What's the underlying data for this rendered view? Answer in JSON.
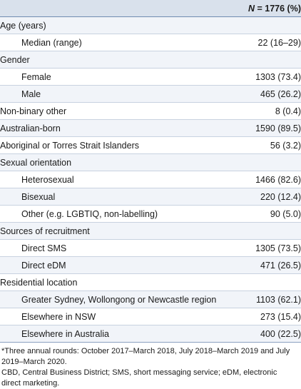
{
  "table": {
    "header": {
      "n_label": "N",
      "n_value": "= 1776 (%)"
    },
    "rows": [
      {
        "label": "Age (years)",
        "value": "",
        "indent": false
      },
      {
        "label": "Median (range)",
        "value": "22 (16–29)",
        "indent": true
      },
      {
        "label": "Gender",
        "value": "",
        "indent": false
      },
      {
        "label": "Female",
        "value": "1303 (73.4)",
        "indent": true
      },
      {
        "label": "Male",
        "value": "465 (26.2)",
        "indent": true
      },
      {
        "label": "Non-binary other",
        "value": "8 (0.4)",
        "indent": false
      },
      {
        "label": "Australian-born",
        "value": "1590 (89.5)",
        "indent": false
      },
      {
        "label": "Aboriginal or Torres Strait Islanders",
        "value": "56 (3.2)",
        "indent": false
      },
      {
        "label": "Sexual orientation",
        "value": "",
        "indent": false
      },
      {
        "label": "Heterosexual",
        "value": "1466 (82.6)",
        "indent": true
      },
      {
        "label": "Bisexual",
        "value": "220 (12.4)",
        "indent": true
      },
      {
        "label": "Other (e.g. LGBTIQ, non-labelling)",
        "value": "90 (5.0)",
        "indent": true
      },
      {
        "label": "Sources of recruitment",
        "value": "",
        "indent": false
      },
      {
        "label": "Direct SMS",
        "value": "1305 (73.5)",
        "indent": true
      },
      {
        "label": "Direct eDM",
        "value": "471 (26.5)",
        "indent": true
      },
      {
        "label": "Residential location",
        "value": "",
        "indent": false
      },
      {
        "label": "Greater Sydney, Wollongong or Newcastle region",
        "value": "1103 (62.1)",
        "indent": true
      },
      {
        "label": "Elsewhere in NSW",
        "value": "273 (15.4)",
        "indent": true
      },
      {
        "label": "Elsewhere in Australia",
        "value": "400 (22.5)",
        "indent": true
      }
    ]
  },
  "footnotes": {
    "note1": "*Three annual rounds: October 2017–March 2018, July 2018–March 2019 and July 2019–March 2020.",
    "note2": "CBD, Central Business District; SMS, short messaging service; eDM, electronic direct marketing."
  }
}
